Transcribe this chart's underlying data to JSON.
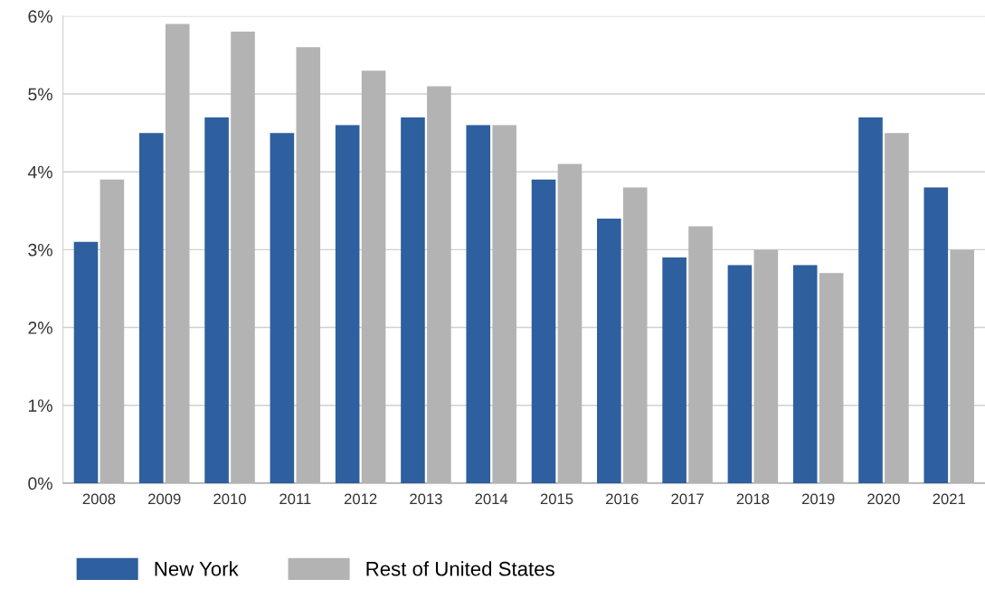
{
  "chart_data": {
    "type": "bar",
    "categories": [
      "2008",
      "2009",
      "2010",
      "2011",
      "2012",
      "2013",
      "2014",
      "2015",
      "2016",
      "2017",
      "2018",
      "2019",
      "2020",
      "2021"
    ],
    "series": [
      {
        "name": "New York",
        "color": "#2e5f9e",
        "values": [
          3.1,
          4.5,
          4.7,
          4.5,
          4.6,
          4.7,
          4.6,
          3.9,
          3.4,
          2.9,
          2.8,
          2.8,
          4.7,
          3.8
        ]
      },
      {
        "name": "Rest of United States",
        "color": "#b3b3b3",
        "values": [
          3.9,
          5.9,
          5.8,
          5.6,
          5.3,
          5.1,
          4.6,
          4.1,
          3.8,
          3.3,
          3.0,
          2.7,
          4.5,
          3.0
        ]
      }
    ],
    "ylim": [
      0,
      6
    ],
    "yticks": [
      {
        "value": 0,
        "label": "0%"
      },
      {
        "value": 1,
        "label": "1%"
      },
      {
        "value": 2,
        "label": "2%"
      },
      {
        "value": 3,
        "label": "3%"
      },
      {
        "value": 4,
        "label": "4%"
      },
      {
        "value": 5,
        "label": "5%"
      },
      {
        "value": 6,
        "label": "6%"
      }
    ],
    "grid": "y",
    "legend": "bottom left"
  }
}
